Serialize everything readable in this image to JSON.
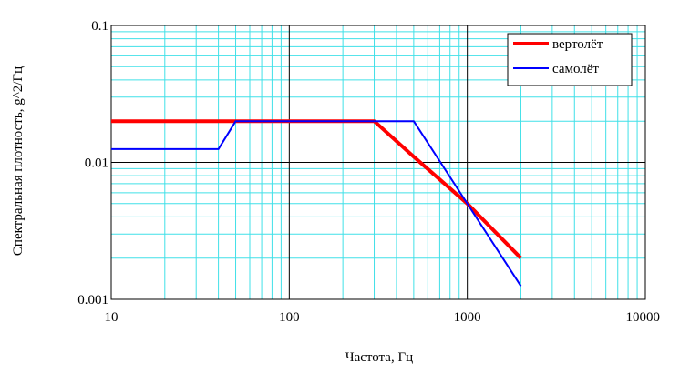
{
  "chart_data": {
    "type": "line",
    "title": "",
    "xlabel": "Частота, Гц",
    "ylabel": "Спектральная плотность, g^2/Гц",
    "xscale": "log",
    "yscale": "log",
    "xlim": [
      10,
      10000
    ],
    "ylim": [
      0.001,
      0.1
    ],
    "x_ticks": [
      "10",
      "100",
      "1000",
      "10000"
    ],
    "y_ticks": [
      "0.001",
      "0.01",
      "0.1"
    ],
    "grid": true,
    "legend_position": "top-right",
    "series": [
      {
        "name": "вертолёт",
        "color": "#ff0000",
        "x": [
          10,
          300,
          500,
          1000,
          2000
        ],
        "y": [
          0.02,
          0.02,
          0.011,
          0.005,
          0.002
        ]
      },
      {
        "name": "самолёт",
        "color": "#0000ff",
        "x": [
          10,
          40,
          50,
          500,
          1000,
          2000
        ],
        "y": [
          0.0125,
          0.0125,
          0.02,
          0.02,
          0.005,
          0.00125
        ]
      }
    ]
  }
}
